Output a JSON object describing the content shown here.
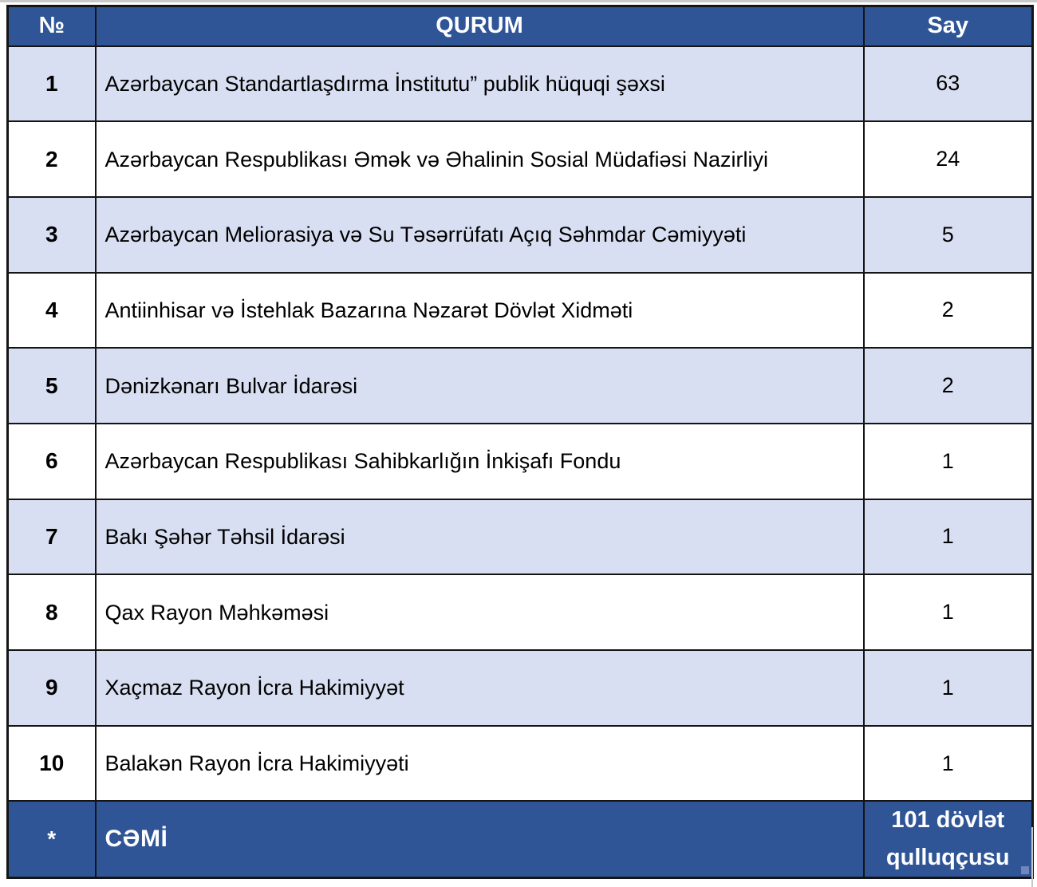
{
  "table": {
    "columns": [
      {
        "key": "no",
        "label": "№"
      },
      {
        "key": "qurum",
        "label": "QURUM"
      },
      {
        "key": "say",
        "label": "Say"
      }
    ],
    "rows": [
      {
        "no": "1",
        "qurum": "Azərbaycan Standartlaşdırma İnstitutu” publik hüquqi şəxsi",
        "say": "63"
      },
      {
        "no": "2",
        "qurum": "Azərbaycan Respublikası Əmək və Əhalinin Sosial Müdafiəsi Nazirliyi",
        "say": "24"
      },
      {
        "no": "3",
        "qurum": "Azərbaycan Meliorasiya və Su Təsərrüfatı Açıq Səhmdar Cəmiyyəti",
        "say": "5"
      },
      {
        "no": "4",
        "qurum": "Antiinhisar və İstehlak Bazarına Nəzarət Dövlət Xidməti",
        "say": "2"
      },
      {
        "no": "5",
        "qurum": "Dənizkənarı Bulvar İdarəsi",
        "say": "2"
      },
      {
        "no": "6",
        "qurum": "Azərbaycan Respublikası Sahibkarlığın İnkişafı Fondu",
        "say": "1"
      },
      {
        "no": "7",
        "qurum": "Bakı Şəhər Təhsil İdarəsi",
        "say": "1"
      },
      {
        "no": "8",
        "qurum": "Qax Rayon Məhkəməsi",
        "say": "1"
      },
      {
        "no": "9",
        "qurum": "Xaçmaz Rayon İcra Hakimiyyət",
        "say": "1"
      },
      {
        "no": "10",
        "qurum": "Balakən Rayon İcra Hakimiyyəti",
        "say": "1"
      }
    ],
    "footer": {
      "no": "*",
      "qurum": "CƏMİ",
      "say": "101 dövlət qulluqçusu"
    },
    "colors": {
      "header_bg": "#2F5597",
      "footer_bg": "#2F5597",
      "row_alt_bg": "#D9DFF2",
      "row_bg": "#FFFFFF",
      "header_text": "#FFFFFF",
      "body_text": "#000000",
      "border": "#141414"
    }
  }
}
